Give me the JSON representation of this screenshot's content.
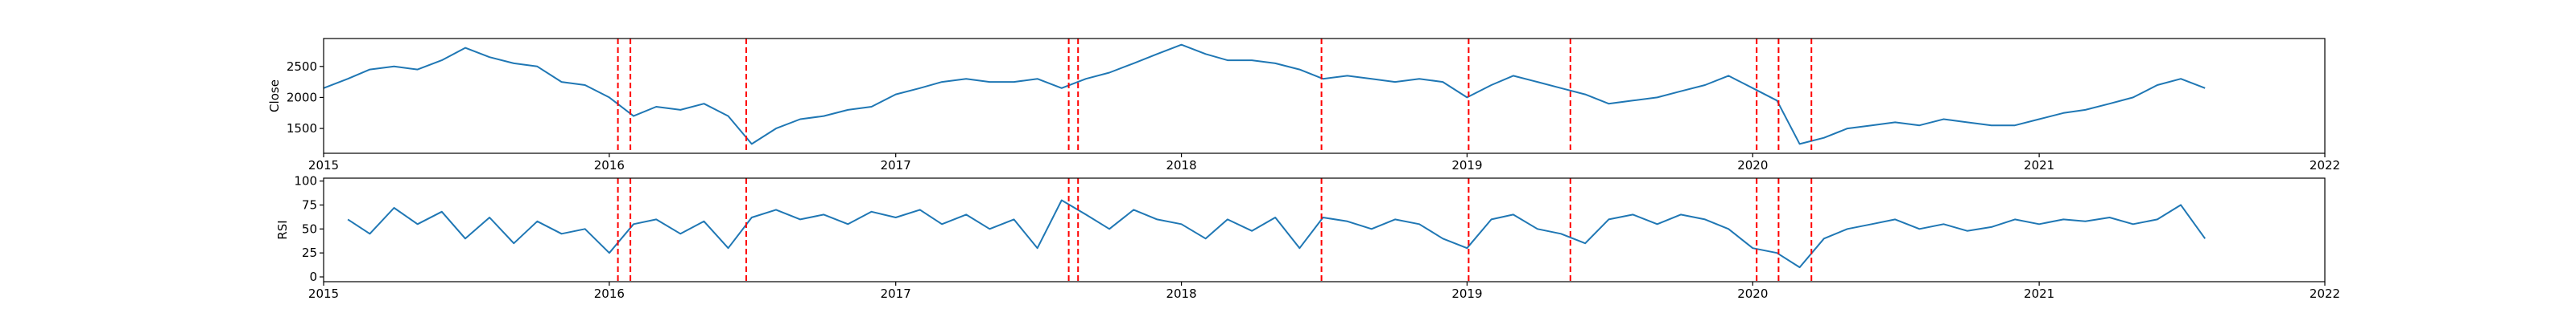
{
  "chart_data": [
    {
      "type": "line",
      "ylabel": "Close",
      "xlim": [
        "2015-01-01",
        "2022-01-01"
      ],
      "ylim": [
        1100,
        2950
      ],
      "x_ticks": [
        "2015",
        "2016",
        "2017",
        "2018",
        "2019",
        "2020",
        "2021",
        "2022"
      ],
      "y_ticks": [
        1500,
        2000,
        2500
      ],
      "grid": false,
      "line_color": "#1f77b4",
      "series": [
        {
          "x": [
            "2015-01-01",
            "2015-02-01",
            "2015-03-01",
            "2015-04-01",
            "2015-05-01",
            "2015-06-01",
            "2015-07-01",
            "2015-08-01",
            "2015-09-01",
            "2015-10-01",
            "2015-11-01",
            "2015-12-01",
            "2016-01-01",
            "2016-02-01",
            "2016-03-01",
            "2016-04-01",
            "2016-05-01",
            "2016-06-01",
            "2016-07-01",
            "2016-08-01",
            "2016-09-01",
            "2016-10-01",
            "2016-11-01",
            "2016-12-01",
            "2017-01-01",
            "2017-02-01",
            "2017-03-01",
            "2017-04-01",
            "2017-05-01",
            "2017-06-01",
            "2017-07-01",
            "2017-08-01",
            "2017-09-01",
            "2017-10-01",
            "2017-11-01",
            "2017-12-01",
            "2018-01-01",
            "2018-02-01",
            "2018-03-01",
            "2018-04-01",
            "2018-05-01",
            "2018-06-01",
            "2018-07-01",
            "2018-08-01",
            "2018-09-01",
            "2018-10-01",
            "2018-11-01",
            "2018-12-01",
            "2019-01-01",
            "2019-02-01",
            "2019-03-01",
            "2019-04-01",
            "2019-05-01",
            "2019-06-01",
            "2019-07-01",
            "2019-08-01",
            "2019-09-01",
            "2019-10-01",
            "2019-11-01",
            "2019-12-01",
            "2020-01-01",
            "2020-02-01",
            "2020-03-01",
            "2020-04-01",
            "2020-05-01",
            "2020-06-01",
            "2020-07-01",
            "2020-08-01",
            "2020-09-01",
            "2020-10-01",
            "2020-11-01",
            "2020-12-01",
            "2021-01-01",
            "2021-02-01",
            "2021-03-01",
            "2021-04-01",
            "2021-05-01",
            "2021-06-01",
            "2021-07-01",
            "2021-08-01"
          ],
          "y": [
            2150,
            2300,
            2450,
            2500,
            2450,
            2600,
            2800,
            2650,
            2550,
            2500,
            2250,
            2200,
            2000,
            1700,
            1850,
            1800,
            1900,
            1700,
            1250,
            1500,
            1650,
            1700,
            1800,
            1850,
            2050,
            2150,
            2250,
            2300,
            2250,
            2250,
            2300,
            2150,
            2300,
            2400,
            2550,
            2700,
            2850,
            2700,
            2600,
            2600,
            2550,
            2450,
            2300,
            2350,
            2300,
            2250,
            2300,
            2250,
            2000,
            2200,
            2350,
            2250,
            2150,
            2050,
            1900,
            1950,
            2000,
            2100,
            2200,
            2350,
            2150,
            1950,
            1250,
            1350,
            1500,
            1550,
            1600,
            1550,
            1650,
            1600,
            1550,
            1550,
            1650,
            1750,
            1800,
            1900,
            2000,
            2200,
            2300,
            2150
          ]
        }
      ],
      "vlines": [
        "2016-01-12",
        "2016-01-28",
        "2016-06-24",
        "2017-08-10",
        "2017-08-22",
        "2018-06-29",
        "2019-01-03",
        "2019-05-13",
        "2020-01-06",
        "2020-02-03",
        "2020-03-16"
      ],
      "vline_color": "#ff0000"
    },
    {
      "type": "line",
      "ylabel": "RSI",
      "xlim": [
        "2015-01-01",
        "2022-01-01"
      ],
      "ylim": [
        -5,
        103
      ],
      "x_ticks": [
        "2015",
        "2016",
        "2017",
        "2018",
        "2019",
        "2020",
        "2021",
        "2022"
      ],
      "y_ticks": [
        0,
        25,
        50,
        75,
        100
      ],
      "grid": false,
      "line_color": "#1f77b4",
      "series": [
        {
          "x": [
            "2015-02-01",
            "2015-03-01",
            "2015-04-01",
            "2015-05-01",
            "2015-06-01",
            "2015-07-01",
            "2015-08-01",
            "2015-09-01",
            "2015-10-01",
            "2015-11-01",
            "2015-12-01",
            "2016-01-01",
            "2016-02-01",
            "2016-03-01",
            "2016-04-01",
            "2016-05-01",
            "2016-06-01",
            "2016-07-01",
            "2016-08-01",
            "2016-09-01",
            "2016-10-01",
            "2016-11-01",
            "2016-12-01",
            "2017-01-01",
            "2017-02-01",
            "2017-03-01",
            "2017-04-01",
            "2017-05-01",
            "2017-06-01",
            "2017-07-01",
            "2017-08-01",
            "2017-09-01",
            "2017-10-01",
            "2017-11-01",
            "2017-12-01",
            "2018-01-01",
            "2018-02-01",
            "2018-03-01",
            "2018-04-01",
            "2018-05-01",
            "2018-06-01",
            "2018-07-01",
            "2018-08-01",
            "2018-09-01",
            "2018-10-01",
            "2018-11-01",
            "2018-12-01",
            "2019-01-01",
            "2019-02-01",
            "2019-03-01",
            "2019-04-01",
            "2019-05-01",
            "2019-06-01",
            "2019-07-01",
            "2019-08-01",
            "2019-09-01",
            "2019-10-01",
            "2019-11-01",
            "2019-12-01",
            "2020-01-01",
            "2020-02-01",
            "2020-03-01",
            "2020-04-01",
            "2020-05-01",
            "2020-06-01",
            "2020-07-01",
            "2020-08-01",
            "2020-09-01",
            "2020-10-01",
            "2020-11-01",
            "2020-12-01",
            "2021-01-01",
            "2021-02-01",
            "2021-03-01",
            "2021-04-01",
            "2021-05-01",
            "2021-06-01",
            "2021-07-01",
            "2021-08-01"
          ],
          "y": [
            60,
            45,
            72,
            55,
            68,
            40,
            62,
            35,
            58,
            45,
            50,
            25,
            55,
            60,
            45,
            58,
            30,
            62,
            70,
            60,
            65,
            55,
            68,
            62,
            70,
            55,
            65,
            50,
            60,
            30,
            80,
            65,
            50,
            70,
            60,
            55,
            40,
            60,
            48,
            62,
            30,
            62,
            58,
            50,
            60,
            55,
            40,
            30,
            60,
            65,
            50,
            45,
            35,
            60,
            65,
            55,
            65,
            60,
            50,
            30,
            25,
            10,
            40,
            50,
            55,
            60,
            50,
            55,
            48,
            52,
            60,
            55,
            60,
            58,
            62,
            55,
            60,
            75,
            40
          ]
        }
      ],
      "vlines": [
        "2016-01-12",
        "2016-01-28",
        "2016-06-24",
        "2017-08-10",
        "2017-08-22",
        "2018-06-29",
        "2019-01-03",
        "2019-05-13",
        "2020-01-06",
        "2020-02-03",
        "2020-03-16"
      ],
      "vline_color": "#ff0000"
    }
  ]
}
